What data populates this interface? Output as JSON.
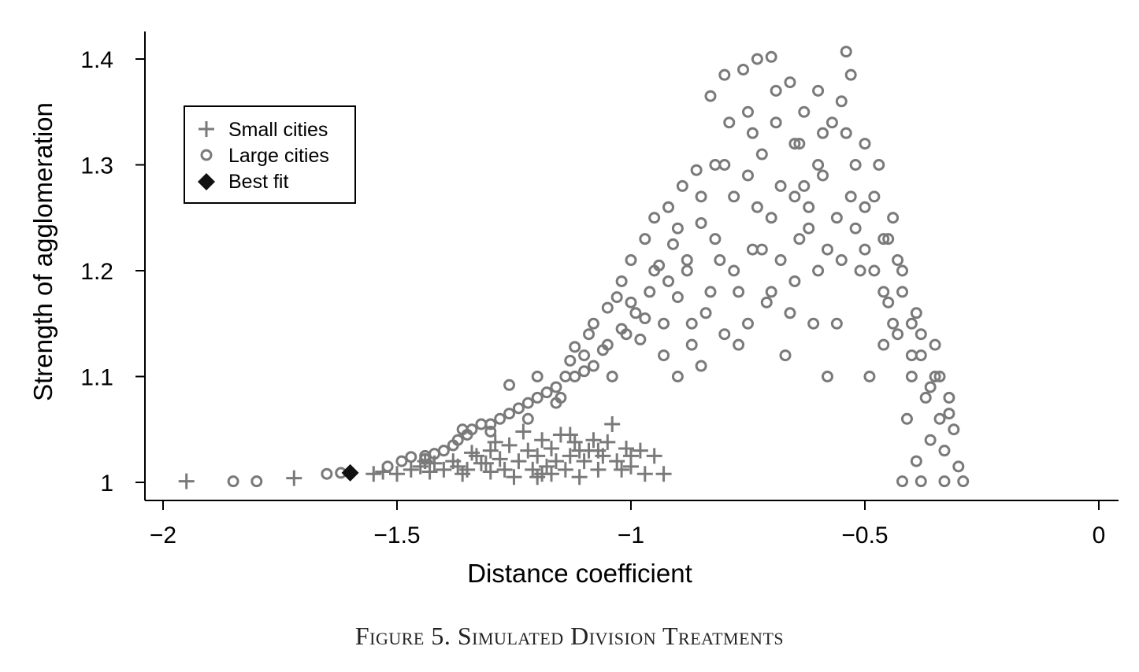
{
  "figure_caption": "Figure 5. Simulated Division Treatments",
  "chart_data": {
    "type": "scatter",
    "xlabel": "Distance coefficient",
    "ylabel": "Strength of agglomeration",
    "xlim": [
      -2.04,
      0.04
    ],
    "ylim": [
      0.983,
      1.425
    ],
    "x_ticks": [
      -2,
      -1.5,
      -1,
      -0.5,
      0
    ],
    "x_tick_labels": [
      "−2",
      "−1.5",
      "−1",
      "−0.5",
      "0"
    ],
    "y_ticks": [
      1,
      1.1,
      1.2,
      1.3,
      1.4
    ],
    "y_tick_labels": [
      "1",
      "1.1",
      "1.2",
      "1.3",
      "1.4"
    ],
    "grid": false,
    "legend_position": "top-left",
    "colors": {
      "small": "#7a7a7a",
      "large": "#7a7a7a",
      "best": "#111111"
    },
    "series": [
      {
        "name": "Small cities",
        "marker": "plus",
        "points": [
          [
            -1.95,
            1.001
          ],
          [
            -1.72,
            1.004
          ],
          [
            -1.55,
            1.008
          ],
          [
            -1.53,
            1.01
          ],
          [
            -1.5,
            1.008
          ],
          [
            -1.47,
            1.012
          ],
          [
            -1.45,
            1.015
          ],
          [
            -1.43,
            1.01
          ],
          [
            -1.42,
            1.018
          ],
          [
            -1.4,
            1.012
          ],
          [
            -1.38,
            1.02
          ],
          [
            -1.37,
            1.015
          ],
          [
            -1.35,
            1.012
          ],
          [
            -1.33,
            1.025
          ],
          [
            -1.32,
            1.018
          ],
          [
            -1.3,
            1.01
          ],
          [
            -1.3,
            1.03
          ],
          [
            -1.28,
            1.022
          ],
          [
            -1.27,
            1.012
          ],
          [
            -1.26,
            1.035
          ],
          [
            -1.25,
            1.005
          ],
          [
            -1.24,
            1.02
          ],
          [
            -1.22,
            1.03
          ],
          [
            -1.21,
            1.012
          ],
          [
            -1.2,
            1.025
          ],
          [
            -1.2,
            1.005
          ],
          [
            -1.19,
            1.04
          ],
          [
            -1.18,
            1.015
          ],
          [
            -1.17,
            1.032
          ],
          [
            -1.16,
            1.02
          ],
          [
            -1.15,
            1.045
          ],
          [
            -1.14,
            1.012
          ],
          [
            -1.13,
            1.025
          ],
          [
            -1.12,
            1.038
          ],
          [
            -1.11,
            1.005
          ],
          [
            -1.1,
            1.02
          ],
          [
            -1.09,
            1.03
          ],
          [
            -1.08,
            1.04
          ],
          [
            -1.07,
            1.012
          ],
          [
            -1.06,
            1.025
          ],
          [
            -1.05,
            1.038
          ],
          [
            -1.04,
            1.055
          ],
          [
            -1.03,
            1.02
          ],
          [
            -1.02,
            1.012
          ],
          [
            -1.01,
            1.032
          ],
          [
            -1.0,
            1.015
          ],
          [
            -0.98,
            1.03
          ],
          [
            -0.97,
            1.008
          ],
          [
            -0.95,
            1.025
          ],
          [
            -0.93,
            1.008
          ],
          [
            -1.34,
            1.028
          ],
          [
            -1.29,
            1.038
          ],
          [
            -1.23,
            1.048
          ],
          [
            -1.17,
            1.008
          ],
          [
            -1.13,
            1.045
          ],
          [
            -1.07,
            1.03
          ],
          [
            -1.44,
            1.02
          ],
          [
            -1.36,
            1.008
          ],
          [
            -1.31,
            1.018
          ],
          [
            -1.19,
            1.008
          ],
          [
            -1.11,
            1.03
          ],
          [
            -1.0,
            1.025
          ]
        ]
      },
      {
        "name": "Large cities",
        "marker": "circle",
        "points": [
          [
            -1.85,
            1.001
          ],
          [
            -1.8,
            1.001
          ],
          [
            -1.65,
            1.008
          ],
          [
            -1.62,
            1.009
          ],
          [
            -1.52,
            1.015
          ],
          [
            -1.49,
            1.02
          ],
          [
            -1.47,
            1.024
          ],
          [
            -1.44,
            1.022
          ],
          [
            -1.42,
            1.027
          ],
          [
            -1.4,
            1.03
          ],
          [
            -1.38,
            1.035
          ],
          [
            -1.37,
            1.04
          ],
          [
            -1.35,
            1.045
          ],
          [
            -1.34,
            1.05
          ],
          [
            -1.32,
            1.055
          ],
          [
            -1.3,
            1.048
          ],
          [
            -1.28,
            1.06
          ],
          [
            -1.26,
            1.065
          ],
          [
            -1.26,
            1.092
          ],
          [
            -1.24,
            1.07
          ],
          [
            -1.22,
            1.075
          ],
          [
            -1.2,
            1.08
          ],
          [
            -1.2,
            1.1
          ],
          [
            -1.18,
            1.085
          ],
          [
            -1.16,
            1.09
          ],
          [
            -1.14,
            1.1
          ],
          [
            -1.13,
            1.115
          ],
          [
            -1.12,
            1.128
          ],
          [
            -1.1,
            1.105
          ],
          [
            -1.09,
            1.14
          ],
          [
            -1.08,
            1.15
          ],
          [
            -1.06,
            1.125
          ],
          [
            -1.05,
            1.165
          ],
          [
            -1.04,
            1.1
          ],
          [
            -1.03,
            1.175
          ],
          [
            -1.02,
            1.145
          ],
          [
            -1.02,
            1.19
          ],
          [
            -1.0,
            1.21
          ],
          [
            -0.99,
            1.16
          ],
          [
            -0.98,
            1.135
          ],
          [
            -0.97,
            1.23
          ],
          [
            -0.96,
            1.18
          ],
          [
            -0.95,
            1.25
          ],
          [
            -0.94,
            1.205
          ],
          [
            -0.93,
            1.15
          ],
          [
            -0.92,
            1.26
          ],
          [
            -0.91,
            1.225
          ],
          [
            -0.9,
            1.175
          ],
          [
            -0.89,
            1.28
          ],
          [
            -0.88,
            1.2
          ],
          [
            -0.87,
            1.13
          ],
          [
            -0.86,
            1.295
          ],
          [
            -0.85,
            1.245
          ],
          [
            -0.84,
            1.16
          ],
          [
            -0.83,
            1.365
          ],
          [
            -0.82,
            1.3
          ],
          [
            -0.81,
            1.21
          ],
          [
            -0.8,
            1.385
          ],
          [
            -0.79,
            1.34
          ],
          [
            -0.78,
            1.27
          ],
          [
            -0.77,
            1.13
          ],
          [
            -0.76,
            1.39
          ],
          [
            -0.75,
            1.35
          ],
          [
            -0.74,
            1.22
          ],
          [
            -0.73,
            1.4
          ],
          [
            -0.72,
            1.31
          ],
          [
            -0.71,
            1.17
          ],
          [
            -0.7,
            1.402
          ],
          [
            -0.69,
            1.37
          ],
          [
            -0.68,
            1.28
          ],
          [
            -0.67,
            1.12
          ],
          [
            -0.66,
            1.378
          ],
          [
            -0.65,
            1.32
          ],
          [
            -0.64,
            1.23
          ],
          [
            -0.63,
            1.35
          ],
          [
            -0.62,
            1.26
          ],
          [
            -0.61,
            1.15
          ],
          [
            -0.6,
            1.37
          ],
          [
            -0.59,
            1.29
          ],
          [
            -0.58,
            1.1
          ],
          [
            -0.57,
            1.34
          ],
          [
            -0.56,
            1.25
          ],
          [
            -0.55,
            1.36
          ],
          [
            -0.54,
            1.407
          ],
          [
            -0.53,
            1.385
          ],
          [
            -0.52,
            1.3
          ],
          [
            -0.51,
            1.2
          ],
          [
            -0.5,
            1.32
          ],
          [
            -0.49,
            1.1
          ],
          [
            -0.48,
            1.27
          ],
          [
            -0.47,
            1.3
          ],
          [
            -0.46,
            1.18
          ],
          [
            -0.45,
            1.23
          ],
          [
            -0.44,
            1.25
          ],
          [
            -0.43,
            1.14
          ],
          [
            -0.42,
            1.2
          ],
          [
            -0.41,
            1.06
          ],
          [
            -0.4,
            1.15
          ],
          [
            -0.39,
            1.02
          ],
          [
            -0.38,
            1.12
          ],
          [
            -0.37,
            1.08
          ],
          [
            -0.36,
            1.04
          ],
          [
            -0.35,
            1.1
          ],
          [
            -0.34,
            1.06
          ],
          [
            -0.33,
            1.03
          ],
          [
            -0.32,
            1.065
          ],
          [
            -0.31,
            1.05
          ],
          [
            -0.3,
            1.015
          ],
          [
            -0.29,
            1.001
          ],
          [
            -0.42,
            1.001
          ],
          [
            -0.38,
            1.001
          ],
          [
            -0.33,
            1.001
          ],
          [
            -0.9,
            1.1
          ],
          [
            -0.85,
            1.11
          ],
          [
            -0.8,
            1.14
          ],
          [
            -0.75,
            1.15
          ],
          [
            -0.7,
            1.18
          ],
          [
            -0.65,
            1.19
          ],
          [
            -0.6,
            1.2
          ],
          [
            -0.55,
            1.21
          ],
          [
            -0.5,
            1.22
          ],
          [
            -0.45,
            1.17
          ],
          [
            -0.4,
            1.1
          ],
          [
            -0.7,
            1.25
          ],
          [
            -0.65,
            1.27
          ],
          [
            -0.6,
            1.3
          ],
          [
            -0.75,
            1.29
          ],
          [
            -0.8,
            1.3
          ],
          [
            -0.85,
            1.27
          ],
          [
            -0.9,
            1.24
          ],
          [
            -0.95,
            1.2
          ],
          [
            -1.0,
            1.17
          ],
          [
            -1.05,
            1.13
          ],
          [
            -1.1,
            1.12
          ],
          [
            -1.15,
            1.08
          ],
          [
            -0.72,
            1.22
          ],
          [
            -0.68,
            1.21
          ],
          [
            -0.62,
            1.24
          ],
          [
            -0.58,
            1.22
          ],
          [
            -0.52,
            1.24
          ],
          [
            -0.48,
            1.2
          ],
          [
            -0.44,
            1.15
          ],
          [
            -0.4,
            1.12
          ],
          [
            -0.36,
            1.09
          ],
          [
            -0.78,
            1.2
          ],
          [
            -0.82,
            1.23
          ],
          [
            -0.88,
            1.21
          ],
          [
            -0.92,
            1.19
          ],
          [
            -0.97,
            1.155
          ],
          [
            -1.01,
            1.14
          ],
          [
            -0.74,
            1.33
          ],
          [
            -0.69,
            1.34
          ],
          [
            -0.64,
            1.32
          ],
          [
            -0.59,
            1.33
          ],
          [
            -0.54,
            1.33
          ],
          [
            -0.5,
            1.26
          ],
          [
            -0.46,
            1.23
          ],
          [
            -0.42,
            1.18
          ],
          [
            -0.38,
            1.14
          ],
          [
            -0.34,
            1.1
          ],
          [
            -0.77,
            1.18
          ],
          [
            -0.66,
            1.16
          ],
          [
            -0.56,
            1.15
          ],
          [
            -0.46,
            1.13
          ],
          [
            -0.83,
            1.18
          ],
          [
            -0.87,
            1.15
          ],
          [
            -0.93,
            1.12
          ],
          [
            -1.08,
            1.11
          ],
          [
            -1.12,
            1.1
          ],
          [
            -1.16,
            1.075
          ],
          [
            -1.22,
            1.06
          ],
          [
            -1.3,
            1.055
          ],
          [
            -1.36,
            1.05
          ],
          [
            -1.44,
            1.025
          ],
          [
            -0.73,
            1.26
          ],
          [
            -0.63,
            1.28
          ],
          [
            -0.53,
            1.27
          ],
          [
            -0.43,
            1.21
          ],
          [
            -0.39,
            1.16
          ],
          [
            -0.35,
            1.13
          ],
          [
            -0.32,
            1.08
          ]
        ]
      },
      {
        "name": "Best fit",
        "marker": "diamond",
        "points": [
          [
            -1.6,
            1.009
          ]
        ]
      }
    ]
  }
}
